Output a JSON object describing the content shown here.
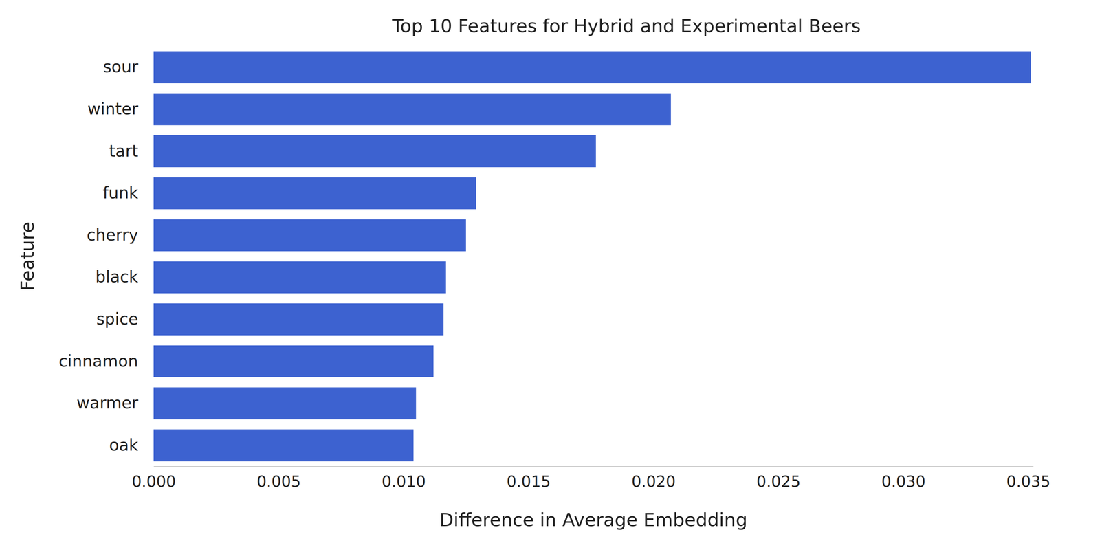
{
  "chart_data": {
    "type": "bar",
    "orientation": "horizontal",
    "title": "Top 10 Features for Hybrid and Experimental Beers",
    "x_label": "Difference in Average Embedding",
    "y_label": "Feature",
    "categories": [
      "sour",
      "winter",
      "tart",
      "funk",
      "cherry",
      "black",
      "spice",
      "cinnamon",
      "warmer",
      "oak"
    ],
    "values": [
      0.0351,
      0.0207,
      0.0177,
      0.0129,
      0.0125,
      0.0117,
      0.0116,
      0.0112,
      0.0105,
      0.0104
    ],
    "color": "#3d62d0",
    "xlim": [
      0,
      0.0352
    ],
    "xticks": [
      {
        "value": 0,
        "label": "0.000"
      },
      {
        "value": 0.005,
        "label": "0.005"
      },
      {
        "value": 0.01,
        "label": "0.010"
      },
      {
        "value": 0.015,
        "label": "0.015"
      },
      {
        "value": 0.02,
        "label": "0.020"
      },
      {
        "value": 0.025,
        "label": "0.025"
      },
      {
        "value": 0.03,
        "label": "0.030"
      },
      {
        "value": 0.035,
        "label": "0.035"
      }
    ],
    "grid": false
  }
}
